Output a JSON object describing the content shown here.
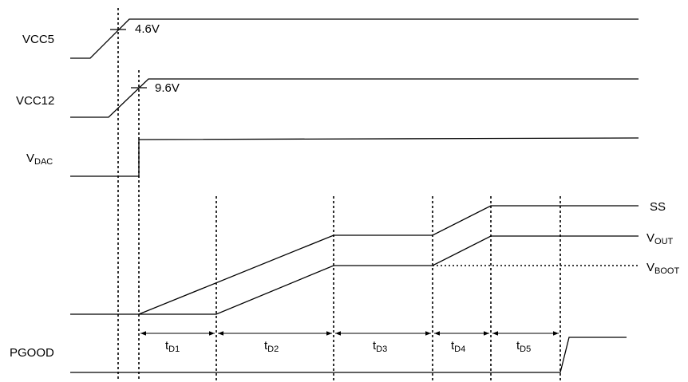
{
  "signals": {
    "vcc5": {
      "label": "VCC5",
      "threshold": "4.6V"
    },
    "vcc12": {
      "label": "VCC12",
      "threshold": "9.6V"
    },
    "vdac": {
      "label_main": "V",
      "label_sub": "DAC"
    },
    "ss": {
      "label": "SS"
    },
    "vout": {
      "label_main": "V",
      "label_sub": "OUT"
    },
    "vboot": {
      "label_main": "V",
      "label_sub": "BOOT"
    },
    "pgood": {
      "label": "PGOOD"
    }
  },
  "intervals": [
    {
      "main": "t",
      "sub": "D1"
    },
    {
      "main": "t",
      "sub": "D2"
    },
    {
      "main": "t",
      "sub": "D3"
    },
    {
      "main": "t",
      "sub": "D4"
    },
    {
      "main": "t",
      "sub": "D5"
    }
  ]
}
